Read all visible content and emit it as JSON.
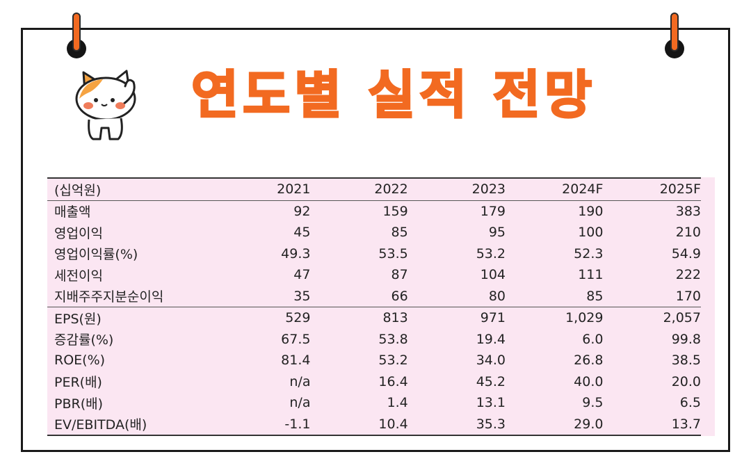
{
  "title": "연도별 실적 전망",
  "colors": {
    "accent": "#f26a21",
    "table_bg": "#fbe6f2",
    "frame": "#1a1a1a"
  },
  "table": {
    "header": [
      "(십억원)",
      "2021",
      "2022",
      "2023",
      "2024F",
      "2025F"
    ],
    "section1": [
      {
        "label": "매출액",
        "values": [
          "92",
          "159",
          "179",
          "190",
          "383"
        ]
      },
      {
        "label": "영업이익",
        "values": [
          "45",
          "85",
          "95",
          "100",
          "210"
        ]
      },
      {
        "label": "영업이익률(%)",
        "values": [
          "49.3",
          "53.5",
          "53.2",
          "52.3",
          "54.9"
        ]
      },
      {
        "label": "세전이익",
        "values": [
          "47",
          "87",
          "104",
          "111",
          "222"
        ]
      },
      {
        "label": "지배주주지분순이익",
        "values": [
          "35",
          "66",
          "80",
          "85",
          "170"
        ]
      }
    ],
    "section2": [
      {
        "label": "EPS(원)",
        "values": [
          "529",
          "813",
          "971",
          "1,029",
          "2,057"
        ]
      },
      {
        "label": "증감률(%)",
        "values": [
          "67.5",
          "53.8",
          "19.4",
          "6.0",
          "99.8"
        ]
      },
      {
        "label": "ROE(%)",
        "values": [
          "81.4",
          "53.2",
          "34.0",
          "26.8",
          "38.5"
        ]
      },
      {
        "label": "PER(배)",
        "values": [
          "n/a",
          "16.4",
          "45.2",
          "40.0",
          "20.0"
        ]
      },
      {
        "label": "PBR(배)",
        "values": [
          "n/a",
          "1.4",
          "13.1",
          "9.5",
          "6.5"
        ]
      },
      {
        "label": "EV/EBITDA(배)",
        "values": [
          "-1.1",
          "10.4",
          "35.3",
          "29.0",
          "13.7"
        ]
      }
    ]
  }
}
